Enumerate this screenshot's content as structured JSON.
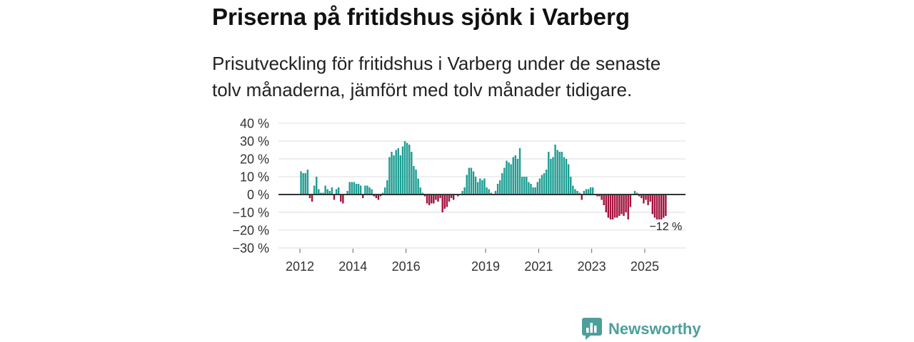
{
  "chart_data": {
    "type": "bar",
    "title": "Priserna på fritidshus sjönk i Varberg",
    "subtitle": [
      "Prisutveckling för fritidshus i Varberg under de senaste",
      "tolv månaderna, jämfört med tolv månader tidigare."
    ],
    "start": {
      "year": 2012,
      "month": 1
    },
    "values": [
      13,
      12,
      12,
      14,
      -2,
      -4,
      5,
      10,
      3,
      1,
      1,
      5,
      3,
      2,
      4,
      -3,
      3,
      4,
      -4,
      -5,
      0,
      2,
      7,
      7,
      7,
      6,
      6,
      5,
      -2,
      5,
      5,
      4,
      3,
      -1,
      -2,
      -3,
      -1,
      1,
      4,
      8,
      21,
      24,
      22,
      25,
      26,
      22,
      27,
      30,
      29,
      28,
      24,
      16,
      14,
      9,
      4,
      1,
      -1,
      -5,
      -6,
      -5,
      -5,
      -3,
      -4,
      -2,
      -10,
      -8,
      -7,
      -4,
      -2,
      -3,
      0,
      -1,
      0,
      2,
      4,
      11,
      15,
      15,
      13,
      10,
      7,
      9,
      8,
      9,
      4,
      3,
      1,
      0,
      2,
      6,
      8,
      12,
      15,
      19,
      18,
      17,
      21,
      22,
      20,
      26,
      10,
      10,
      10,
      7,
      6,
      4,
      4,
      7,
      9,
      11,
      12,
      14,
      24,
      20,
      21,
      28,
      25,
      24,
      24,
      21,
      20,
      17,
      10,
      5,
      3,
      2,
      1,
      -3,
      2,
      3,
      3,
      4,
      4,
      0,
      -1,
      -1,
      -3,
      -6,
      -10,
      -13,
      -14,
      -14,
      -13,
      -13,
      -12,
      -11,
      -12,
      -10,
      -14,
      -7,
      0,
      2,
      1,
      -1,
      -2,
      -5,
      -3,
      -6,
      -4,
      -11,
      -13,
      -14,
      -14,
      -14,
      -13,
      -12
    ],
    "ylim": [
      -30,
      40
    ],
    "yticks": [
      40,
      30,
      20,
      10,
      0,
      -10,
      -20,
      -30
    ],
    "ytick_labels": [
      "40 %",
      "30 %",
      "20 %",
      "10 %",
      "0 %",
      "−10 %",
      "−20 %",
      "−30 %"
    ],
    "xticks": [
      2012,
      2014,
      2016,
      2019,
      2021,
      2023,
      2025
    ],
    "grid": true,
    "annotation": {
      "label": "−12 %"
    }
  },
  "colors": {
    "positive": "#1d9d92",
    "negative": "#a3123e",
    "zero_line": "#333333",
    "grid": "#dcdcdc",
    "tick": "#666666",
    "axis_text": "#333333",
    "annotation_text": "#222222",
    "brand": "#4d9f9b"
  },
  "brand": {
    "name": "Newsworthy",
    "icon": "newsworthy-logo-icon"
  }
}
